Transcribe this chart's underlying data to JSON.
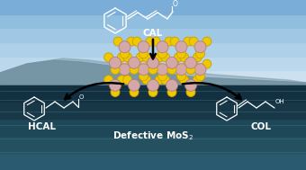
{
  "bg_color": "#5a8fa8",
  "cal_label": "CAL",
  "hcal_label": "HCAL",
  "col_label": "COL",
  "defective_label": "Defective MoS$_2$",
  "mo_color": "#d4a8a8",
  "s_color": "#f0c800",
  "s_edge_color": "#c8a000",
  "mo_edge_color": "#b08080",
  "white": "#ffffff",
  "black": "#000000",
  "sky_colors": [
    "#d0e4f0",
    "#b8d4e8",
    "#a0c4e0",
    "#88b4d8",
    "#6898b8"
  ],
  "mountain_color": "#6a8898",
  "water_colors": [
    "#3a6878",
    "#2e5868",
    "#244858",
    "#1a3848"
  ],
  "figsize": [
    3.4,
    1.89
  ],
  "dpi": 100
}
